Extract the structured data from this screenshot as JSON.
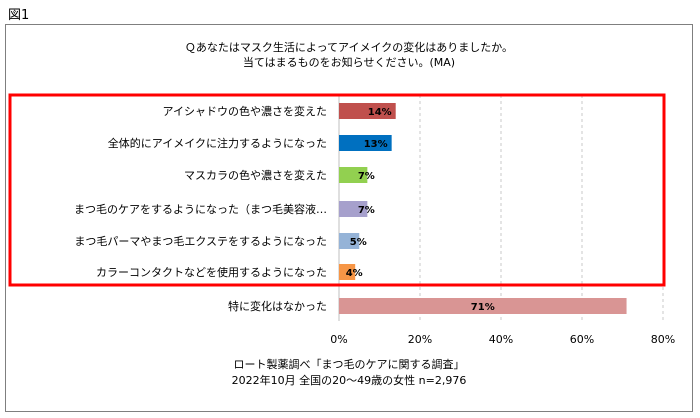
{
  "figure_label": "図1",
  "chart_data": {
    "type": "bar",
    "orientation": "horizontal",
    "title_lines": [
      "Ｑあなたはマスク生活によってアイメイクの変化はありましたか。",
      "当てはまるものをお知らせください。(MA)"
    ],
    "categories": [
      "アイシャドウの色や濃さを変えた",
      "全体的にアイメイクに注力するようになった",
      "マスカラの色や濃さを変えた",
      "まつ毛のケアをするようになった（まつ毛美容液…",
      "まつ毛パーマやまつ毛エクステをするようになった",
      "カラーコンタクトなどを使用するようになった",
      "特に変化はなかった"
    ],
    "values": [
      14,
      13,
      7,
      7,
      5,
      4,
      71
    ],
    "value_labels": [
      "14%",
      "13%",
      "7%",
      "7%",
      "5%",
      "4%",
      "71%"
    ],
    "colors": [
      "#c0504d",
      "#0070c0",
      "#92d050",
      "#a6a0cc",
      "#95b3d7",
      "#f79646",
      "#d99594"
    ],
    "xlim": [
      0,
      80
    ],
    "x_ticks": [
      0,
      20,
      40,
      60,
      80
    ],
    "x_tick_labels": [
      "0%",
      "20%",
      "40%",
      "60%",
      "80%"
    ],
    "grid": "vertical dashed",
    "highlight_box_color": "#ff0000",
    "highlight_rows": 6,
    "source_lines": [
      "ロート製薬調べ「まつ毛のケアに関する調査」",
      "2022年10月  全国の20～49歳の女性  n=2,976"
    ]
  }
}
